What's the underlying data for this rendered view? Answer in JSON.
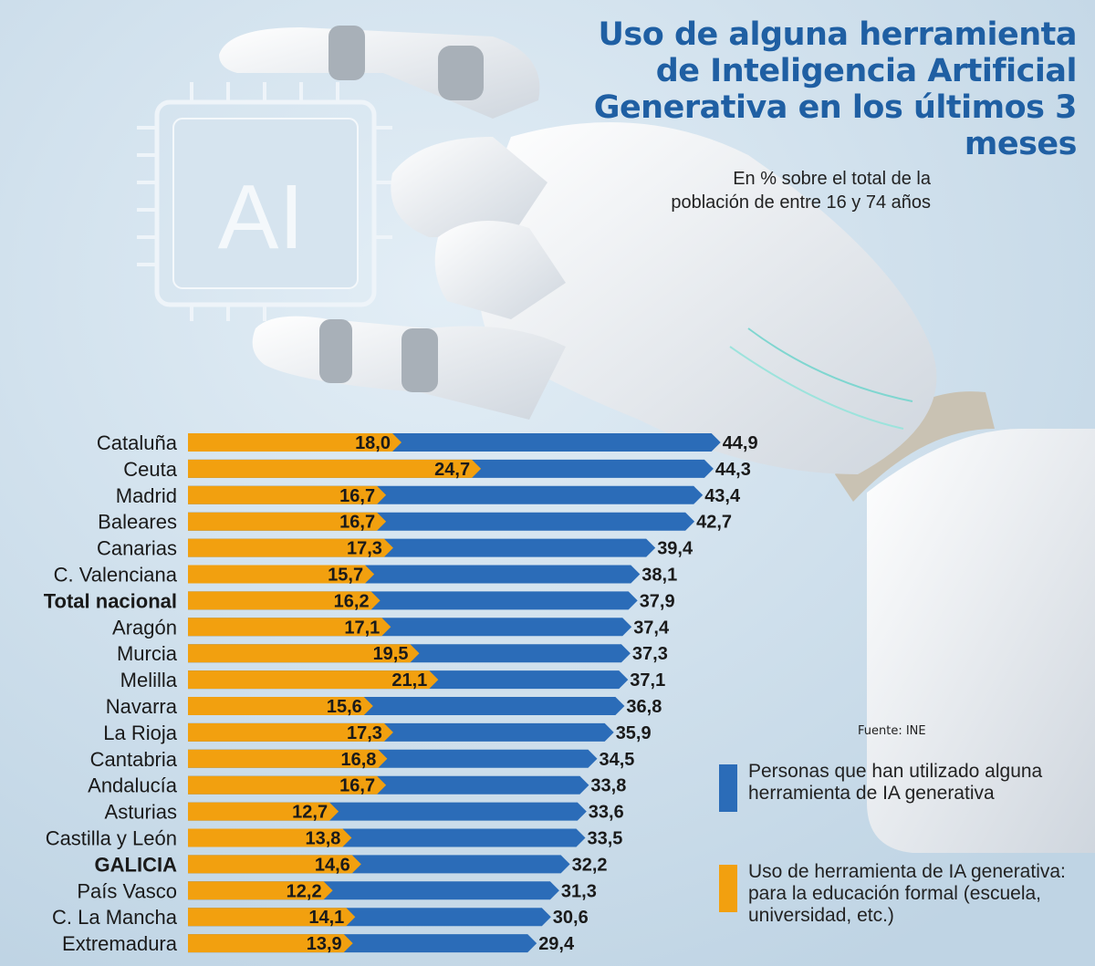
{
  "title": "Uso de alguna herramienta de Inteligencia Artificial Generativa en los últimos 3 meses",
  "subtitle": "En % sobre el total de la población de entre 16 y 74 años",
  "source": "Fuente: INE",
  "illustration": {
    "chip_label": "AI"
  },
  "colors": {
    "blue": "#2b6cb8",
    "orange": "#f2a00f",
    "title": "#1f5fa3",
    "background": "#c7dbe9"
  },
  "chart_data": {
    "type": "bar",
    "orientation": "horizontal",
    "categories": [
      "Cataluña",
      "Ceuta",
      "Madrid",
      "Baleares",
      "Canarias",
      "C. Valenciana",
      "Total nacional",
      "Aragón",
      "Murcia",
      "Melilla",
      "Navarra",
      "La Rioja",
      "Cantabria",
      "Andalucía",
      "Asturias",
      "Castilla y León",
      "GALICIA",
      "País Vasco",
      "C. La Mancha",
      "Extremadura"
    ],
    "bold_categories": [
      "Total nacional",
      "GALICIA"
    ],
    "series": [
      {
        "name": "Personas que han utilizado alguna herramienta de IA generativa",
        "color": "#2b6cb8",
        "values": [
          44.9,
          44.3,
          43.4,
          42.7,
          39.4,
          38.1,
          37.9,
          37.4,
          37.3,
          37.1,
          36.8,
          35.9,
          34.5,
          33.8,
          33.6,
          33.5,
          32.2,
          31.3,
          30.6,
          29.4
        ],
        "labels": [
          "44,9",
          "44,3",
          "43,4",
          "42,7",
          "39,4",
          "38,1",
          "37,9",
          "37,4",
          "37,3",
          "37,1",
          "36,8",
          "35,9",
          "34,5",
          "33,8",
          "33,6",
          "33,5",
          "32,2",
          "31,3",
          "30,6",
          "29,4"
        ]
      },
      {
        "name": "Uso de herramienta de IA generativa: para la educación formal (escuela, universidad, etc.)",
        "color": "#f2a00f",
        "values": [
          18.0,
          24.7,
          16.7,
          16.7,
          17.3,
          15.7,
          16.2,
          17.1,
          19.5,
          21.1,
          15.6,
          17.3,
          16.8,
          16.7,
          12.7,
          13.8,
          14.6,
          12.2,
          14.1,
          13.9
        ],
        "labels": [
          "18,0",
          "24,7",
          "16,7",
          "16,7",
          "17,3",
          "15,7",
          "16,2",
          "17,1",
          "19,5",
          "21,1",
          "15,6",
          "17,3",
          "16,8",
          "16,7",
          "12,7",
          "13,8",
          "14,6",
          "12,2",
          "14,1",
          "13,9"
        ]
      }
    ],
    "xlim": [
      0,
      50
    ],
    "grid": false,
    "legend": "bottom-right"
  }
}
